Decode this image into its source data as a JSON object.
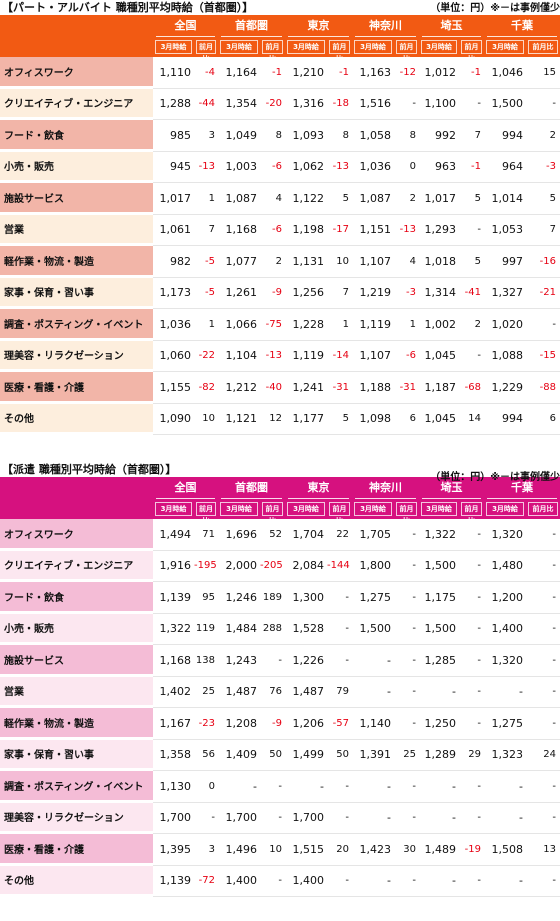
{
  "columns": {
    "regions": [
      "全国",
      "首都圏",
      "東京",
      "神奈川",
      "埼玉",
      "千葉"
    ],
    "sub_wage": "3月時給",
    "sub_prev": "前月比"
  },
  "part": {
    "title": "【パート・アルバイト 職種別平均時給（首都圏）】",
    "unit": "（単位：円）※－は事例僅少",
    "header_color": "#f25a13",
    "label_color_a": "#f2b5a8",
    "label_color_b": "#fdeedd",
    "rows": [
      {
        "label": "オフィスワーク",
        "values": [
          "1,110",
          "-4",
          "1,164",
          "-1",
          "1,210",
          "-1",
          "1,163",
          "-12",
          "1,012",
          "-1",
          "1,046",
          "15"
        ]
      },
      {
        "label": "クリエイティブ・エンジニア",
        "values": [
          "1,288",
          "-44",
          "1,354",
          "-20",
          "1,316",
          "-18",
          "1,516",
          "-",
          "1,100",
          "-",
          "1,500",
          "-"
        ]
      },
      {
        "label": "フード・飲食",
        "values": [
          "985",
          "3",
          "1,049",
          "8",
          "1,093",
          "8",
          "1,058",
          "8",
          "992",
          "7",
          "994",
          "2"
        ]
      },
      {
        "label": "小売・販売",
        "values": [
          "945",
          "-13",
          "1,003",
          "-6",
          "1,062",
          "-13",
          "1,036",
          "0",
          "963",
          "-1",
          "964",
          "-3"
        ]
      },
      {
        "label": "施設サービス",
        "values": [
          "1,017",
          "1",
          "1,087",
          "4",
          "1,122",
          "5",
          "1,087",
          "2",
          "1,017",
          "5",
          "1,014",
          "5"
        ]
      },
      {
        "label": "営業",
        "values": [
          "1,061",
          "7",
          "1,168",
          "-6",
          "1,198",
          "-17",
          "1,151",
          "-13",
          "1,293",
          "-",
          "1,053",
          "7"
        ]
      },
      {
        "label": "軽作業・物流・製造",
        "values": [
          "982",
          "-5",
          "1,077",
          "2",
          "1,131",
          "10",
          "1,107",
          "4",
          "1,018",
          "5",
          "997",
          "-16"
        ]
      },
      {
        "label": "家事・保育・習い事",
        "values": [
          "1,173",
          "-5",
          "1,261",
          "-9",
          "1,256",
          "7",
          "1,219",
          "-3",
          "1,314",
          "-41",
          "1,327",
          "-21"
        ]
      },
      {
        "label": "調査・ポスティング・イベント",
        "values": [
          "1,036",
          "1",
          "1,066",
          "-75",
          "1,228",
          "1",
          "1,119",
          "1",
          "1,002",
          "2",
          "1,020",
          "-"
        ]
      },
      {
        "label": "理美容・リラクゼーション",
        "values": [
          "1,060",
          "-22",
          "1,104",
          "-13",
          "1,119",
          "-14",
          "1,107",
          "-6",
          "1,045",
          "-",
          "1,088",
          "-15"
        ]
      },
      {
        "label": "医療・看護・介護",
        "values": [
          "1,155",
          "-82",
          "1,212",
          "-40",
          "1,241",
          "-31",
          "1,188",
          "-31",
          "1,187",
          "-68",
          "1,229",
          "-88"
        ]
      },
      {
        "label": "その他",
        "values": [
          "1,090",
          "10",
          "1,121",
          "12",
          "1,177",
          "5",
          "1,098",
          "6",
          "1,045",
          "14",
          "994",
          "6"
        ]
      }
    ]
  },
  "haken": {
    "title": "【派遣 職種別平均時給（首都圏）】",
    "unit": "（単位：円）※－は事例僅少",
    "header_color": "#d6117f",
    "label_color_a": "#f4bcd6",
    "label_color_b": "#fce7f0",
    "rows": [
      {
        "label": "オフィスワーク",
        "values": [
          "1,494",
          "71",
          "1,696",
          "52",
          "1,704",
          "22",
          "1,705",
          "-",
          "1,322",
          "-",
          "1,320",
          "-"
        ]
      },
      {
        "label": "クリエイティブ・エンジニア",
        "values": [
          "1,916",
          "-195",
          "2,000",
          "-205",
          "2,084",
          "-144",
          "1,800",
          "-",
          "1,500",
          "-",
          "1,480",
          "-"
        ]
      },
      {
        "label": "フード・飲食",
        "values": [
          "1,139",
          "95",
          "1,246",
          "189",
          "1,300",
          "-",
          "1,275",
          "-",
          "1,175",
          "-",
          "1,200",
          "-"
        ]
      },
      {
        "label": "小売・販売",
        "values": [
          "1,322",
          "119",
          "1,484",
          "288",
          "1,528",
          "-",
          "1,500",
          "-",
          "1,500",
          "-",
          "1,400",
          "-"
        ]
      },
      {
        "label": "施設サービス",
        "values": [
          "1,168",
          "138",
          "1,243",
          "-",
          "1,226",
          "-",
          "-",
          "-",
          "1,285",
          "-",
          "1,320",
          "-"
        ]
      },
      {
        "label": "営業",
        "values": [
          "1,402",
          "25",
          "1,487",
          "76",
          "1,487",
          "79",
          "-",
          "-",
          "-",
          "-",
          "-",
          "-"
        ]
      },
      {
        "label": "軽作業・物流・製造",
        "values": [
          "1,167",
          "-23",
          "1,208",
          "-9",
          "1,206",
          "-57",
          "1,140",
          "-",
          "1,250",
          "-",
          "1,275",
          "-"
        ]
      },
      {
        "label": "家事・保育・習い事",
        "values": [
          "1,358",
          "56",
          "1,409",
          "50",
          "1,499",
          "50",
          "1,391",
          "25",
          "1,289",
          "29",
          "1,323",
          "24"
        ]
      },
      {
        "label": "調査・ポスティング・イベント",
        "values": [
          "1,130",
          "0",
          "-",
          "-",
          "-",
          "-",
          "-",
          "-",
          "-",
          "-",
          "-",
          "-"
        ]
      },
      {
        "label": "理美容・リラクゼーション",
        "values": [
          "1,700",
          "-",
          "1,700",
          "-",
          "1,700",
          "-",
          "-",
          "-",
          "-",
          "-",
          "-",
          "-"
        ]
      },
      {
        "label": "医療・看護・介護",
        "values": [
          "1,395",
          "3",
          "1,496",
          "10",
          "1,515",
          "20",
          "1,423",
          "30",
          "1,489",
          "-19",
          "1,508",
          "13"
        ]
      },
      {
        "label": "その他",
        "values": [
          "1,139",
          "-72",
          "1,400",
          "-",
          "1,400",
          "-",
          "-",
          "-",
          "-",
          "-",
          "-",
          "-"
        ]
      }
    ]
  }
}
